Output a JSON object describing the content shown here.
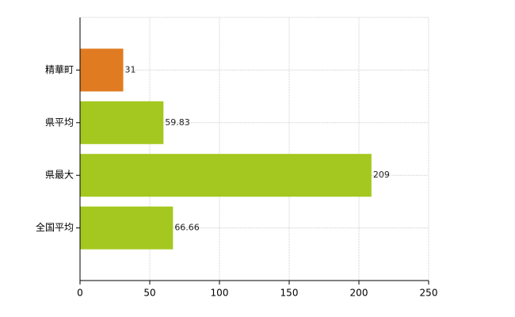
{
  "chart_data": {
    "type": "bar",
    "orientation": "horizontal",
    "categories": [
      "精華町",
      "県平均",
      "県最大",
      "全国平均"
    ],
    "values": [
      31,
      59.83,
      209,
      66.66
    ],
    "colors": [
      "#e07b22",
      "#a4c81f",
      "#a4c81f",
      "#a4c81f"
    ],
    "xlim": [
      0,
      250
    ],
    "xticks": [
      0,
      50,
      100,
      150,
      200,
      250
    ],
    "grid": true
  }
}
